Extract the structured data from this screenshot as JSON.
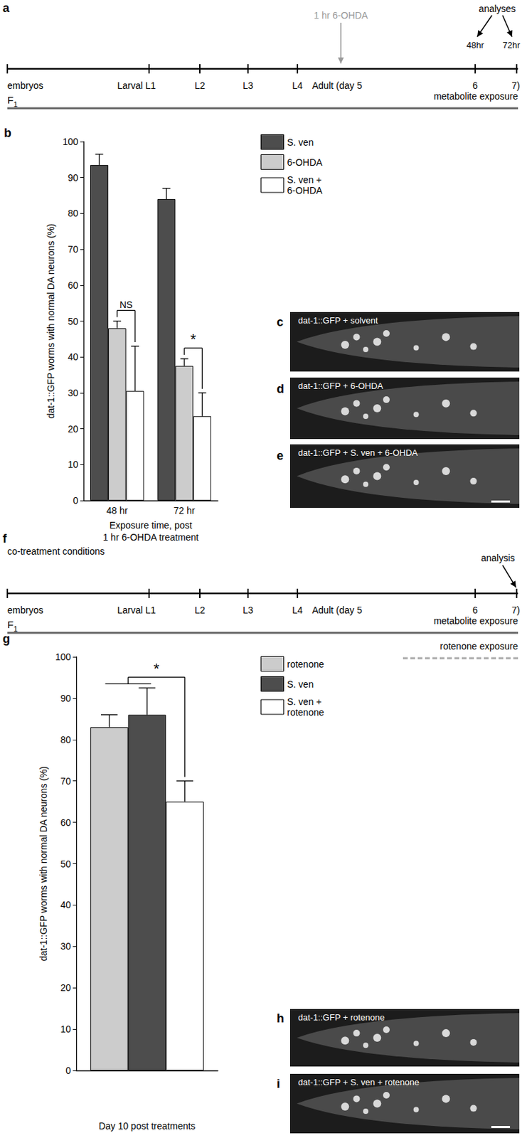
{
  "panel_labels": [
    "a",
    "b",
    "c",
    "d",
    "e",
    "f",
    "g",
    "h",
    "i"
  ],
  "timelines": [
    {
      "start": "embryos",
      "generation": "F1",
      "stages": [
        "Larval L1",
        "L2",
        "L3",
        "L4",
        "Adult (day 5",
        "6",
        "7)"
      ],
      "treatment": "1 hr 6-OHDA",
      "analysis": "analyses",
      "analysis_times": [
        "48hr",
        "72hr"
      ],
      "exposures": [
        {
          "label": "metabolite exposure",
          "line_style": "solid"
        }
      ]
    },
    {
      "title": "co-treatment conditions",
      "start": "embryos",
      "generation": "F1",
      "stages": [
        "Larval L1",
        "L2",
        "L3",
        "L4",
        "Adult (day 5",
        "6",
        "7)"
      ],
      "analysis": "analysis",
      "exposures": [
        {
          "label": "metabolite exposure",
          "line_style": "solid"
        },
        {
          "label": "rotenone exposure",
          "line_style": "dashed"
        }
      ]
    }
  ],
  "chart_data": [
    {
      "type": "bar",
      "categories": [
        "48 hr",
        "72 hr"
      ],
      "x_label": "Exposure time, post\n1 hr 6-OHDA treatment",
      "y_label": "dat-1::GFP worms with normal DA neurons (%)",
      "ylim": [
        0,
        100
      ],
      "yticks": [
        0,
        10,
        20,
        30,
        40,
        50,
        60,
        70,
        80,
        90,
        100
      ],
      "grid": false,
      "legend": "right",
      "series": [
        {
          "name": "S. ven",
          "color": "#4d4d4d",
          "values": [
            93.5,
            84
          ],
          "errors": [
            3,
            3
          ]
        },
        {
          "name": "6-OHDA",
          "color": "#cccccc",
          "values": [
            48,
            37.5
          ],
          "errors": [
            2,
            2
          ]
        },
        {
          "name": "S. ven + 6-OHDA",
          "color": "#ffffff",
          "values": [
            30.5,
            23.5
          ],
          "errors": [
            12.5,
            6.5
          ]
        }
      ],
      "annotations": [
        {
          "text": "NS",
          "category": "48 hr",
          "from": [
            "6-OHDA"
          ],
          "to": [
            "S. ven + 6-OHDA"
          ]
        },
        {
          "text": "*",
          "category": "72 hr",
          "from": [
            "6-OHDA"
          ],
          "to": [
            "S. ven + 6-OHDA"
          ]
        }
      ]
    },
    {
      "type": "bar",
      "categories": [
        null
      ],
      "x_label": "Day 10 post treatments",
      "y_label": "dat-1::GFP worms with normal DA neurons (%)",
      "ylim": [
        0,
        100
      ],
      "yticks": [
        0,
        10,
        20,
        30,
        40,
        50,
        60,
        70,
        80,
        90,
        100
      ],
      "grid": false,
      "legend": "right",
      "series": [
        {
          "name": "rotenone",
          "color": "#cccccc",
          "values": [
            83
          ],
          "errors": [
            3
          ]
        },
        {
          "name": "S. ven",
          "color": "#4d4d4d",
          "values": [
            86
          ],
          "errors": [
            6.5
          ]
        },
        {
          "name": "S. ven + rotenone",
          "color": "#ffffff",
          "values": [
            65
          ],
          "errors": [
            5
          ]
        }
      ],
      "annotations": [
        {
          "text": "*",
          "category": null,
          "from": [
            "rotenone",
            "S. ven"
          ],
          "to": [
            "S. ven + rotenone"
          ]
        }
      ]
    }
  ],
  "images": [
    {
      "label": "dat-1::GFP + solvent",
      "scale_bar": false
    },
    {
      "label": "dat-1::GFP + 6-OHDA",
      "scale_bar": false
    },
    {
      "label": "dat-1::GFP + S. ven + 6-OHDA",
      "scale_bar": true
    },
    {
      "label": "dat-1::GFP + rotenone",
      "scale_bar": false
    },
    {
      "label": "dat-1::GFP + S. ven + rotenone",
      "scale_bar": true
    }
  ]
}
